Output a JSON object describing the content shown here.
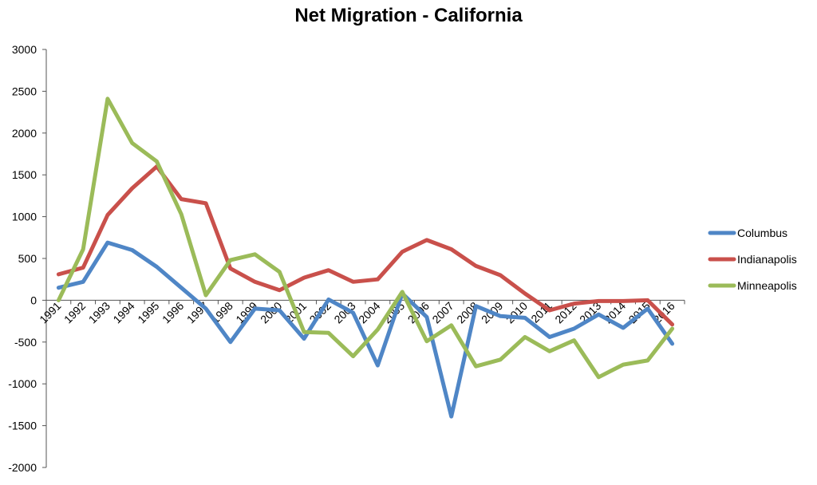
{
  "chart_data": {
    "type": "line",
    "title": "Net Migration - California",
    "xlabel": "",
    "ylabel": "",
    "ylim": [
      -2000,
      3000
    ],
    "ytick_step": 500,
    "yticks": [
      "3000",
      "2500",
      "2000",
      "1500",
      "1000",
      "500",
      "0",
      "-500",
      "-1000",
      "-1500",
      "-2000"
    ],
    "grid": false,
    "legend_position": "right",
    "categories": [
      "1991",
      "1992",
      "1993",
      "1994",
      "1995",
      "1996",
      "1997",
      "1998",
      "1999",
      "2000",
      "2001",
      "2002",
      "2003",
      "2004",
      "2005",
      "2006",
      "2007",
      "2008",
      "2009",
      "2010",
      "2011",
      "2012",
      "2013",
      "2014",
      "2015",
      "2016"
    ],
    "series": [
      {
        "name": "Columbus",
        "color": "#4f86c6",
        "values": [
          150,
          220,
          690,
          600,
          400,
          150,
          -100,
          -500,
          -100,
          -120,
          -460,
          10,
          -150,
          -780,
          80,
          -200,
          -1390,
          -70,
          -190,
          -210,
          -440,
          -340,
          -170,
          -330,
          -100,
          -520
        ]
      },
      {
        "name": "Indianapolis",
        "color": "#c9504b",
        "values": [
          310,
          390,
          1020,
          1340,
          1600,
          1210,
          1160,
          380,
          220,
          120,
          270,
          360,
          220,
          250,
          580,
          720,
          610,
          410,
          300,
          80,
          -120,
          -40,
          -10,
          -10,
          0,
          -290
        ]
      },
      {
        "name": "Minneapolis",
        "color": "#9bbb59",
        "values": [
          0,
          610,
          2410,
          1880,
          1660,
          1030,
          60,
          480,
          550,
          340,
          -380,
          -390,
          -670,
          -350,
          100,
          -490,
          -300,
          -790,
          -710,
          -440,
          -610,
          -480,
          -920,
          -770,
          -720,
          -340
        ]
      }
    ]
  }
}
